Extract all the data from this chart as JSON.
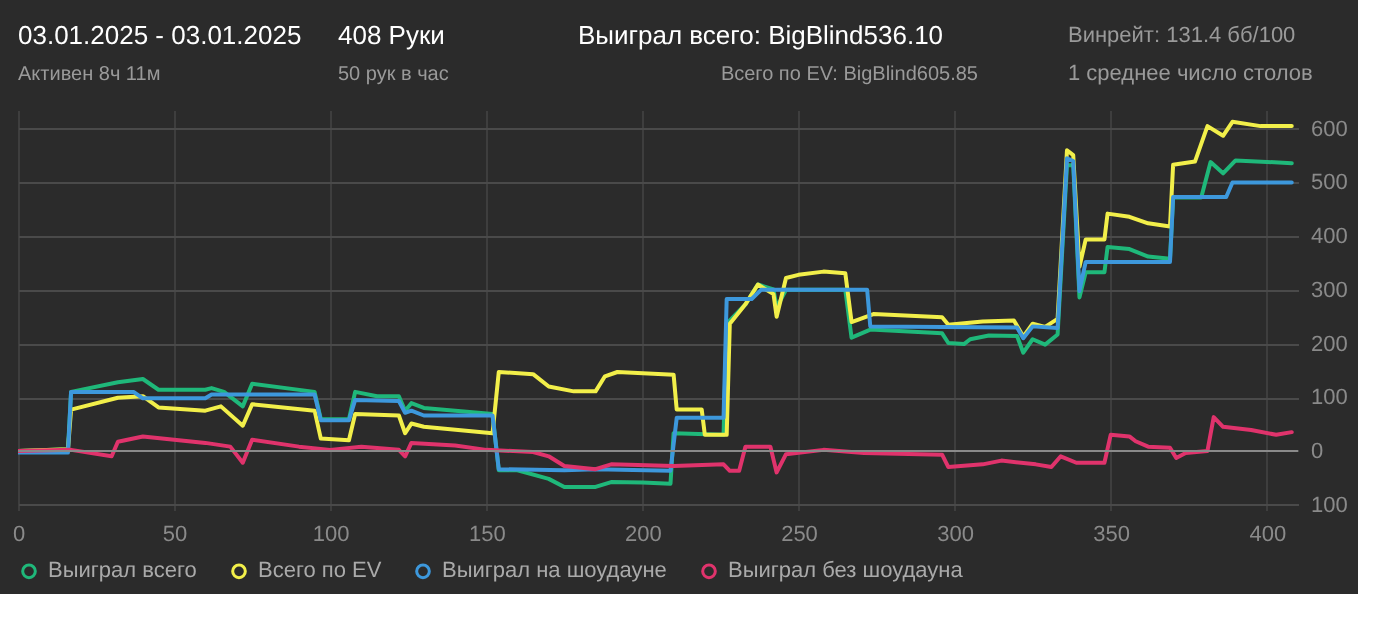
{
  "chart_data": {
    "type": "line",
    "title": "03.01.2025 - 03.01.2025",
    "subtitle": "Активен 8ч 11м",
    "annotations": [
      "408 Руки",
      "50 рук в час",
      "Выиграл всего: BigBlind536.10",
      "Всего по EV: BigBlind605.85",
      "Винрейт: 131.4 бб/100",
      "1 среднее число столов"
    ],
    "xlim": [
      0,
      410
    ],
    "xticks": [
      0,
      50,
      100,
      150,
      200,
      250,
      300,
      350,
      400
    ],
    "ylim": [
      -110,
      635
    ],
    "yticks": [
      {
        "value": -100,
        "label": "100"
      },
      0,
      100,
      200,
      300,
      400,
      500,
      600
    ],
    "grid": true,
    "legend": "bottom",
    "line_style": "solid",
    "marker": "none",
    "ref_lines": [
      {
        "axis": "y",
        "value": 0,
        "color": "#8a8a8a"
      }
    ],
    "series": [
      {
        "name": "Выиграл всего",
        "color": "#1fb87a",
        "x": [
          0,
          16,
          17,
          32,
          40,
          45,
          60,
          62,
          66,
          72,
          75,
          95,
          97,
          106,
          108,
          115,
          122,
          124,
          126,
          130,
          152,
          154,
          160,
          170,
          175,
          185,
          190,
          200,
          209,
          210,
          226,
          227,
          233,
          237,
          242,
          243,
          246,
          265,
          267,
          273,
          296,
          298,
          303,
          305,
          311,
          320,
          322,
          325,
          329,
          333,
          336,
          338,
          340,
          342,
          348,
          349,
          356,
          362,
          369,
          370,
          379,
          382,
          386,
          390,
          408
        ],
        "values": [
          0,
          3,
          110,
          128,
          134,
          114,
          114,
          117,
          110,
          83,
          125,
          110,
          59,
          59,
          110,
          102,
          102,
          75,
          89,
          80,
          69,
          -36,
          -36,
          -52,
          -67,
          -67,
          -58,
          -59,
          -61,
          33,
          30,
          237,
          273,
          310,
          301,
          267,
          300,
          300,
          211,
          226,
          219,
          201,
          199,
          208,
          215,
          214,
          183,
          208,
          198,
          217,
          532,
          532,
          286,
          333,
          333,
          380,
          376,
          362,
          358,
          472,
          472,
          538,
          517,
          541,
          536
        ]
      },
      {
        "name": "Всего по EV",
        "color": "#f2ef4a",
        "x": [
          0,
          16,
          17,
          32,
          40,
          45,
          60,
          65,
          72,
          75,
          95,
          97,
          106,
          108,
          122,
          124,
          126,
          130,
          152,
          154,
          165,
          170,
          178,
          185,
          188,
          192,
          210,
          211,
          219,
          220,
          227,
          228,
          233,
          237,
          242,
          243,
          246,
          250,
          258,
          265,
          267,
          274,
          296,
          298,
          309,
          319,
          322,
          325,
          329,
          333,
          336,
          338,
          340,
          342,
          348,
          349,
          356,
          362,
          369,
          370,
          377,
          381,
          386,
          389,
          398,
          408
        ],
        "values": [
          0,
          3,
          77,
          99,
          102,
          81,
          75,
          83,
          47,
          87,
          75,
          23,
          20,
          69,
          66,
          33,
          51,
          45,
          33,
          147,
          143,
          120,
          111,
          111,
          139,
          147,
          142,
          77,
          77,
          30,
          30,
          237,
          273,
          310,
          292,
          250,
          322,
          328,
          334,
          331,
          240,
          255,
          249,
          235,
          241,
          243,
          213,
          237,
          231,
          246,
          560,
          551,
          343,
          394,
          394,
          442,
          436,
          424,
          418,
          533,
          539,
          605,
          587,
          613,
          605,
          605
        ]
      },
      {
        "name": "Выиграл на шоудауне",
        "color": "#3d98dc",
        "x": [
          0,
          16,
          17,
          37,
          40,
          60,
          62,
          95,
          97,
          106,
          108,
          122,
          124,
          126,
          130,
          152,
          154,
          175,
          185,
          209,
          211,
          226,
          227,
          235,
          238,
          245,
          272,
          273,
          320,
          322,
          325,
          333,
          336,
          338,
          340,
          342,
          369,
          370,
          387,
          389,
          408
        ],
        "values": [
          -3,
          -3,
          110,
          110,
          98,
          98,
          105,
          105,
          57,
          57,
          95,
          93,
          71,
          75,
          66,
          66,
          -34,
          -36,
          -34,
          -37,
          62,
          62,
          283,
          283,
          300,
          300,
          300,
          232,
          230,
          210,
          232,
          229,
          545,
          540,
          298,
          352,
          352,
          473,
          473,
          500,
          500
        ]
      },
      {
        "name": "Выиграл без шоудауна",
        "color": "#e0336c",
        "x": [
          0,
          17,
          30,
          32,
          40,
          50,
          60,
          68,
          72,
          75,
          90,
          100,
          110,
          122,
          124,
          126,
          140,
          150,
          165,
          170,
          175,
          185,
          190,
          210,
          226,
          228,
          231,
          233,
          241,
          243,
          246,
          258,
          271,
          296,
          298,
          309,
          315,
          326,
          331,
          334,
          339,
          348,
          350,
          356,
          358,
          362,
          369,
          371,
          374,
          381,
          383,
          386,
          395,
          403,
          408
        ],
        "values": [
          0,
          2,
          -10,
          17,
          27,
          21,
          15,
          8,
          -22,
          21,
          8,
          2,
          8,
          2,
          -10,
          15,
          10,
          2,
          -2,
          -10,
          -28,
          -34,
          -25,
          -28,
          -25,
          -37,
          -37,
          8,
          8,
          -40,
          -6,
          2,
          -4,
          -7,
          -30,
          -25,
          -18,
          -25,
          -30,
          -10,
          -22,
          -22,
          30,
          27,
          18,
          8,
          6,
          -13,
          -4,
          0,
          63,
          45,
          39,
          30,
          35
        ]
      }
    ]
  }
}
